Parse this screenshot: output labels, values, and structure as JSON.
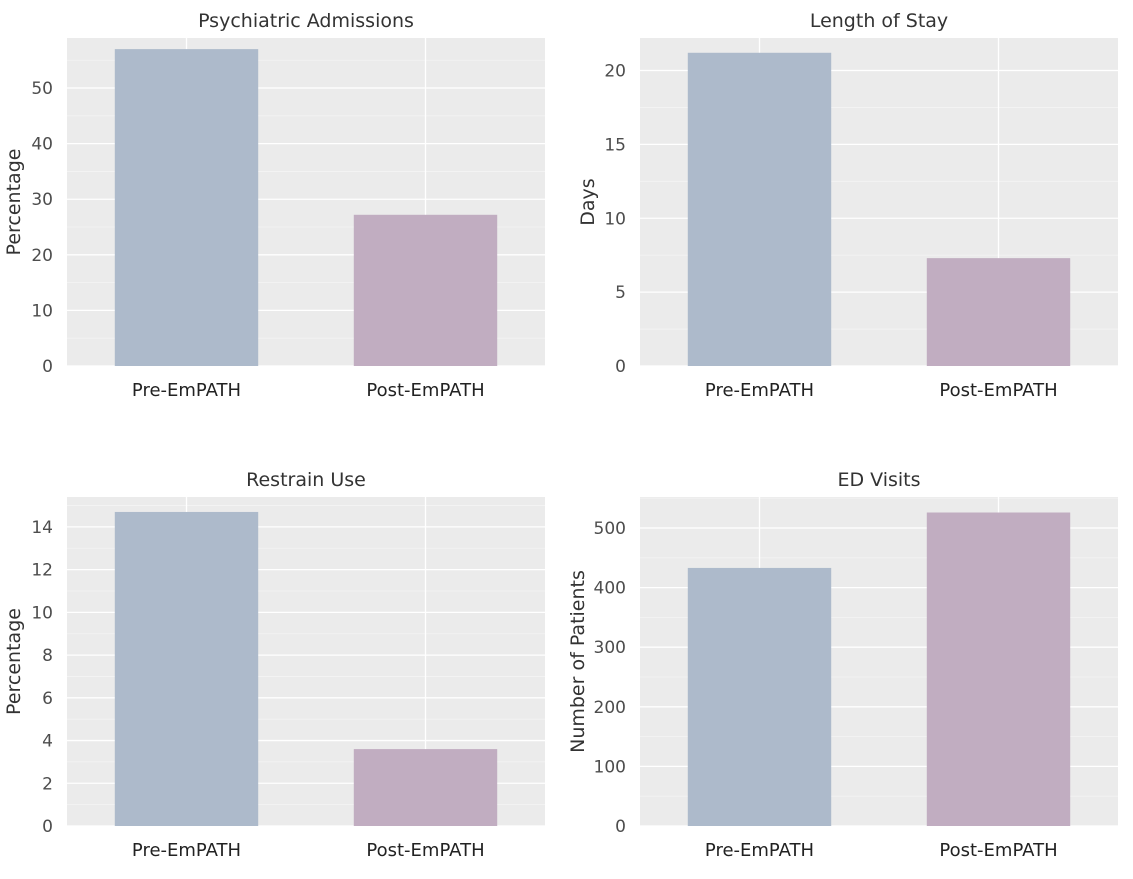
{
  "chart_data": [
    {
      "type": "bar",
      "title": "Psychiatric Admissions",
      "xlabel": "",
      "ylabel": "Percentage",
      "categories": [
        "Pre-EmPATH",
        "Post-EmPATH"
      ],
      "values": [
        57.0,
        27.2
      ],
      "ylim": [
        0,
        59
      ],
      "yticks": [
        0,
        10,
        20,
        30,
        40,
        50
      ],
      "colors": [
        "#adbacb",
        "#c1adc1"
      ],
      "grid": true
    },
    {
      "type": "bar",
      "title": "Length of Stay",
      "xlabel": "",
      "ylabel": "Days",
      "categories": [
        "Pre-EmPATH",
        "Post-EmPATH"
      ],
      "values": [
        21.2,
        7.3
      ],
      "ylim": [
        0,
        22.2
      ],
      "yticks": [
        0,
        5,
        10,
        15,
        20
      ],
      "colors": [
        "#adbacb",
        "#c1adc1"
      ],
      "grid": true
    },
    {
      "type": "bar",
      "title": "Restrain Use",
      "xlabel": "",
      "ylabel": "Percentage",
      "categories": [
        "Pre-EmPATH",
        "Post-EmPATH"
      ],
      "values": [
        14.7,
        3.6
      ],
      "ylim": [
        0,
        15.4
      ],
      "yticks": [
        0,
        2,
        4,
        6,
        8,
        10,
        12,
        14
      ],
      "colors": [
        "#adbacb",
        "#c1adc1"
      ],
      "grid": true
    },
    {
      "type": "bar",
      "title": "ED Visits",
      "xlabel": "",
      "ylabel": "Number of Patients",
      "categories": [
        "Pre-EmPATH",
        "Post-EmPATH"
      ],
      "values": [
        433,
        526
      ],
      "ylim": [
        0,
        552
      ],
      "yticks": [
        0,
        100,
        200,
        300,
        400,
        500
      ],
      "colors": [
        "#adbacb",
        "#c1adc1"
      ],
      "grid": true
    }
  ]
}
